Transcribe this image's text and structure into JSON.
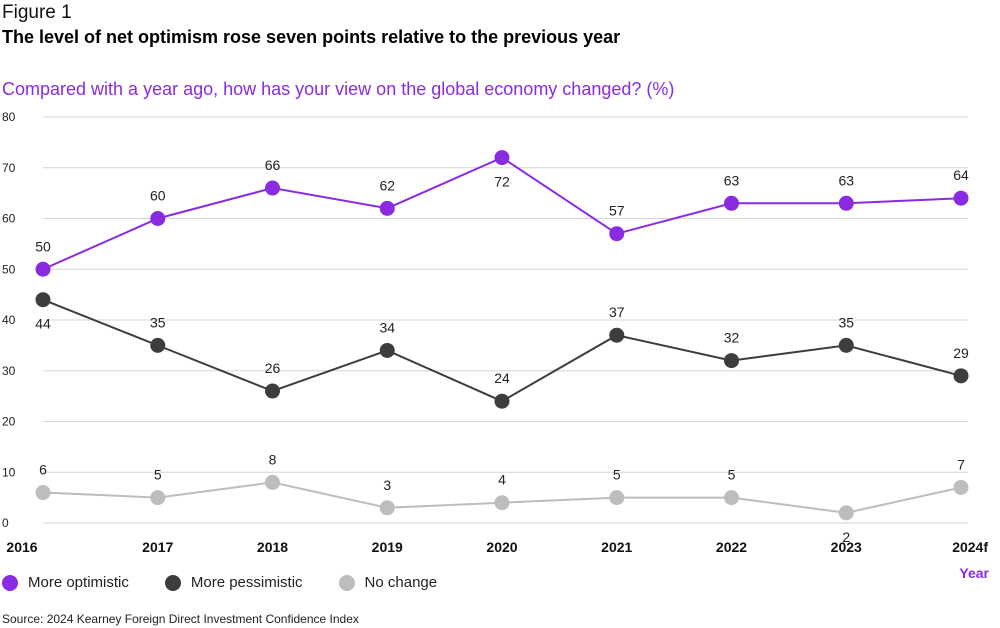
{
  "figure_label": "Figure 1",
  "title": "The level of net optimism rose seven points relative to the previous year",
  "subtitle": "Compared with a year ago, how has your view on the global economy changed? (%)",
  "source": "Source: 2024 Kearney Foreign Direct Investment Confidence Index",
  "chart_data": {
    "type": "line",
    "title": "Compared with a year ago, how has your view on the global economy changed? (%)",
    "xlabel": "Year",
    "ylabel": "",
    "categories": [
      "2016",
      "2017",
      "2018",
      "2019",
      "2020",
      "2021",
      "2022",
      "2023",
      "2024f"
    ],
    "ylim": [
      0,
      80
    ],
    "yticks": [
      0,
      10,
      20,
      30,
      40,
      50,
      60,
      70,
      80
    ],
    "grid": true,
    "legend_position": "bottom-left",
    "series": [
      {
        "name": "More optimistic",
        "color": "#8a2be2",
        "values": [
          50,
          60,
          66,
          62,
          72,
          57,
          63,
          63,
          64
        ]
      },
      {
        "name": "More pessimistic",
        "color": "#3d3d3d",
        "values": [
          44,
          35,
          26,
          34,
          24,
          37,
          32,
          35,
          29
        ]
      },
      {
        "name": "No change",
        "color": "#bdbdbd",
        "values": [
          6,
          5,
          8,
          3,
          4,
          5,
          5,
          2,
          7
        ]
      }
    ]
  }
}
